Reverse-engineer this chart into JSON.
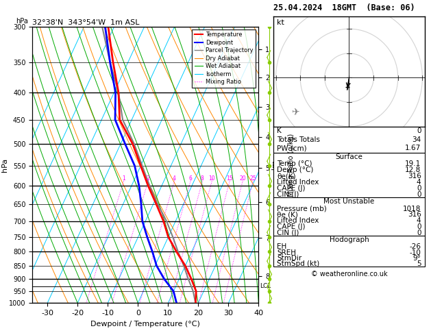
{
  "title_left": "32°38'N  343°54'W  1m ASL",
  "title_right": "25.04.2024  18GMT  (Base: 06)",
  "xlabel": "Dewpoint / Temperature (°C)",
  "ylabel_left": "hPa",
  "bg_color": "#ffffff",
  "sounding_temp_x": [
    19.1,
    17.5,
    14.0,
    10.0,
    5.0,
    0.0,
    -4.0,
    -9.0,
    -14.5,
    -20.0,
    -26.0,
    -34.0,
    -38.5,
    -45.0,
    -52.0
  ],
  "sounding_dewp_x": [
    12.8,
    10.0,
    5.0,
    0.5,
    -3.0,
    -7.0,
    -11.0,
    -14.0,
    -17.5,
    -22.0,
    -28.5,
    -35.5,
    -39.5,
    -46.0,
    -53.0
  ],
  "sounding_parcel_x": [
    19.1,
    16.5,
    13.0,
    9.5,
    5.5,
    1.5,
    -3.0,
    -8.5,
    -14.0,
    -19.5,
    -25.5,
    -33.0,
    -38.5,
    -46.0,
    -54.0
  ],
  "pressure_data": [
    1000,
    950,
    900,
    850,
    800,
    750,
    700,
    650,
    600,
    550,
    500,
    450,
    400,
    350,
    300
  ],
  "pressure_levels": [
    300,
    350,
    400,
    450,
    500,
    550,
    600,
    650,
    700,
    750,
    800,
    850,
    900,
    950,
    1000
  ],
  "pressure_major": [
    300,
    400,
    500,
    600,
    700,
    800,
    900,
    1000
  ],
  "temp_range": [
    -35,
    40
  ],
  "temp_ticks": [
    -30,
    -20,
    -10,
    0,
    10,
    20,
    30,
    40
  ],
  "temp_color": "#ff0000",
  "dewp_color": "#0000ff",
  "parcel_color": "#808080",
  "isotherm_color": "#00ccff",
  "dry_adiabat_color": "#ff8800",
  "wet_adiabat_color": "#00aa00",
  "mixing_ratio_color": "#ff00ff",
  "lcl_pressure": 930,
  "lcl_label": "LCL",
  "mixing_ratios": [
    1,
    2,
    4,
    6,
    8,
    10,
    15,
    20,
    25
  ],
  "mixing_ratio_label_pressure": 590,
  "altitude_ticks": [
    1,
    2,
    3,
    4,
    5,
    6,
    7,
    8
  ],
  "altitude_pressures": [
    907,
    801,
    706,
    619,
    540,
    466,
    399,
    337
  ],
  "skew": 35,
  "stats_K": "0",
  "stats_TT": "34",
  "stats_PW": "1.67",
  "surf_temp": "19.1",
  "surf_dewp": "12.8",
  "surf_theta": "316",
  "surf_li": "4",
  "surf_cape": "0",
  "surf_cin": "0",
  "mu_press": "1018",
  "mu_theta": "316",
  "mu_li": "4",
  "mu_cape": "0",
  "mu_cin": "0",
  "hodo_eh": "-26",
  "hodo_sreh": "-10",
  "hodo_stmdir": "9°",
  "hodo_stmspd": "5",
  "copyright": "© weatheronline.co.uk"
}
